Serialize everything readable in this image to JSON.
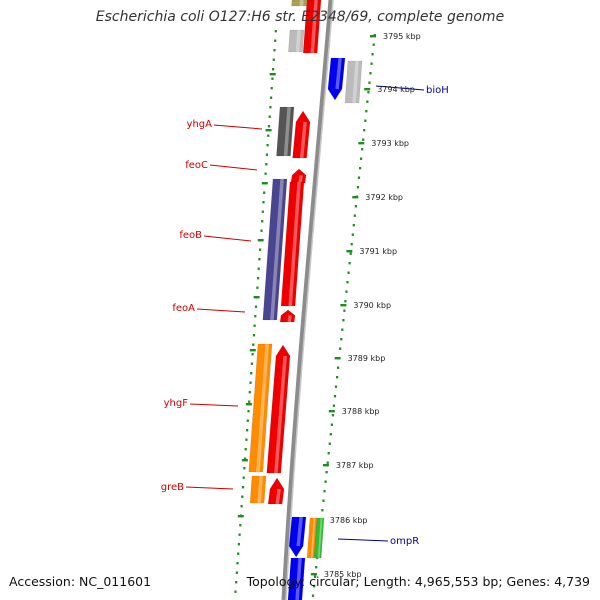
{
  "title": "Escherichia coli O127:H6 str. E2348/69, complete genome",
  "footer": {
    "accession": "Accession: NC_011601",
    "summary": "Topology: circular; Length: 4,965,553 bp; Genes: 4,739"
  },
  "colors": {
    "backbone": "#8c8c8c",
    "tick": "#1e8c1e",
    "gene_label": "#cc0000",
    "blue_label": "#000099",
    "kbp_label": "#222222"
  },
  "kbp_labels": [
    "3795 kbp",
    "3794 kbp",
    "3793 kbp",
    "3792 kbp",
    "3791 kbp",
    "3790 kbp",
    "3789 kbp",
    "3788 kbp",
    "3787 kbp",
    "3786 kbp",
    "3785 kbp"
  ],
  "gene_labels": [
    {
      "name": "yhgA",
      "color": "#cc0000"
    },
    {
      "name": "feoC",
      "color": "#cc0000"
    },
    {
      "name": "feoB",
      "color": "#cc0000"
    },
    {
      "name": "feoA",
      "color": "#cc0000"
    },
    {
      "name": "yhgF",
      "color": "#cc0000"
    },
    {
      "name": "greB",
      "color": "#cc0000"
    },
    {
      "name": "bioH",
      "color": "#000099"
    },
    {
      "name": "ompR",
      "color": "#000099"
    }
  ],
  "features": [
    {
      "name": "red-cds-top",
      "color": "#ee0000"
    },
    {
      "name": "olive-cds",
      "color": "#a89f55"
    },
    {
      "name": "gray-cds-top",
      "color": "#bbbbbb"
    },
    {
      "name": "blue-cds-biohregion",
      "color": "#0000ee"
    },
    {
      "name": "gray-cds-bioh",
      "color": "#bbbbbb"
    },
    {
      "name": "darkgray-cds-yhga",
      "color": "#555555"
    },
    {
      "name": "red-cds-yhga",
      "color": "#ee0000"
    },
    {
      "name": "red-cds-feoc",
      "color": "#ee0000"
    },
    {
      "name": "purple-cds-feob",
      "color": "#4a4590"
    },
    {
      "name": "red-cds-feob",
      "color": "#ee0000"
    },
    {
      "name": "red-cds-feoa",
      "color": "#ee0000"
    },
    {
      "name": "orange-cds-yhgf",
      "color": "#ff8c00"
    },
    {
      "name": "red-cds-yhgf",
      "color": "#ee0000"
    },
    {
      "name": "orange-cds-greb",
      "color": "#ff8c00"
    },
    {
      "name": "red-cds-greb",
      "color": "#ee0000"
    },
    {
      "name": "blue-cds-ompr",
      "color": "#0000ee"
    },
    {
      "name": "orange-cds-ompr",
      "color": "#ff8c00"
    },
    {
      "name": "green-cds-ompr",
      "color": "#33bb33"
    },
    {
      "name": "blue-cds-bottom",
      "color": "#0000ee"
    }
  ]
}
